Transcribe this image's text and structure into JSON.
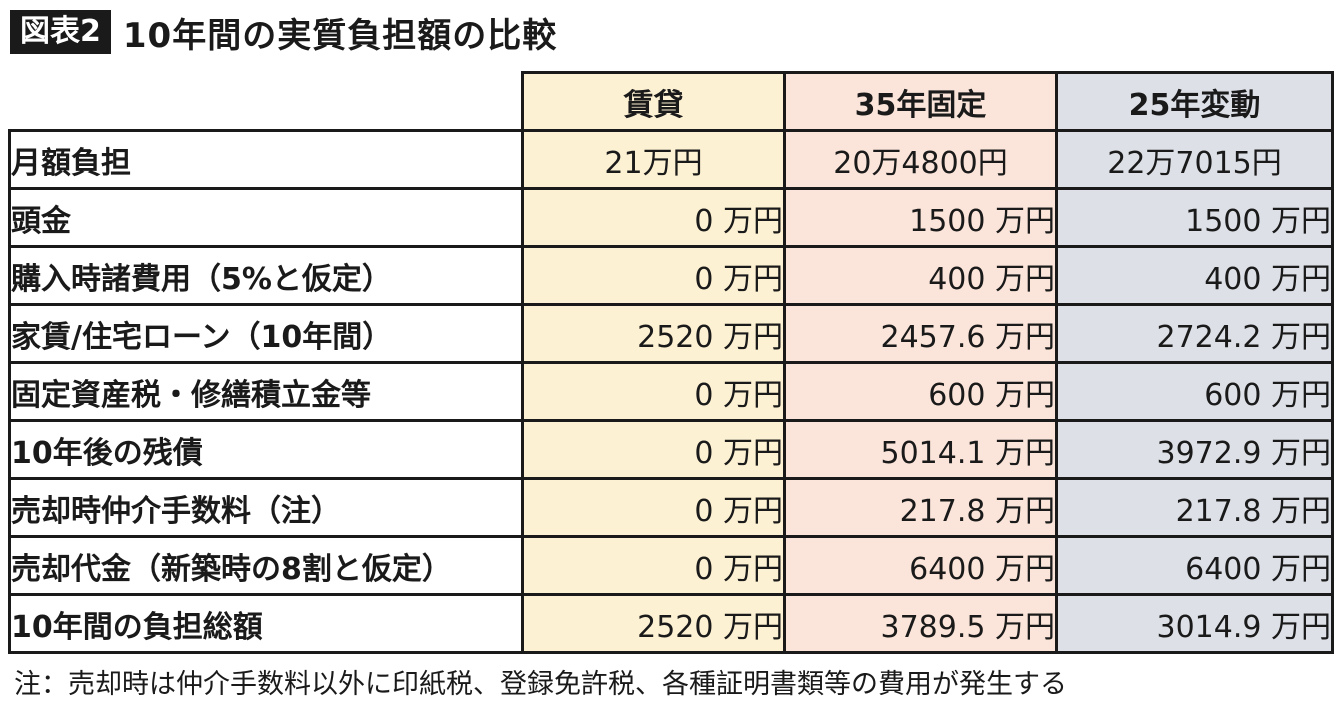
{
  "header": {
    "badge": "図表2",
    "title": "10年間の実質負担額の比較"
  },
  "table": {
    "columns": [
      "賃貸",
      "35年固定",
      "25年変動"
    ],
    "rows": [
      {
        "label": "月額負担",
        "values": [
          "21万円",
          "20万4800円",
          "22万7015円"
        ],
        "center": true
      },
      {
        "label": "頭金",
        "values": [
          "0 万円",
          "1500 万円",
          "1500 万円"
        ]
      },
      {
        "label": "購入時諸費用（5%と仮定）",
        "values": [
          "0 万円",
          "400 万円",
          "400 万円"
        ]
      },
      {
        "label": "家賃/住宅ローン（10年間）",
        "values": [
          "2520 万円",
          "2457.6 万円",
          "2724.2 万円"
        ]
      },
      {
        "label": "固定資産税・修繕積立金等",
        "values": [
          "0 万円",
          "600 万円",
          "600 万円"
        ]
      },
      {
        "label": "10年後の残債",
        "values": [
          "0 万円",
          "5014.1 万円",
          "3972.9 万円"
        ]
      },
      {
        "label": "売却時仲介手数料（注）",
        "values": [
          "0 万円",
          "217.8 万円",
          "217.8 万円"
        ]
      },
      {
        "label": "売却代金（新築時の8割と仮定）",
        "values": [
          "0 万円",
          "6400 万円",
          "6400 万円"
        ]
      },
      {
        "label": "10年間の負担総額",
        "values": [
          "2520 万円",
          "3789.5 万円",
          "3014.9 万円"
        ]
      }
    ]
  },
  "colors": {
    "rent": "#fdf1d3",
    "fixed": "#fbe5da",
    "variable": "#dde1e7",
    "badge": "#1a1a1a"
  },
  "note": "注：売却時は仲介手数料以外に印紙税、登録免許税、各種証明書類等の費用が発生する"
}
